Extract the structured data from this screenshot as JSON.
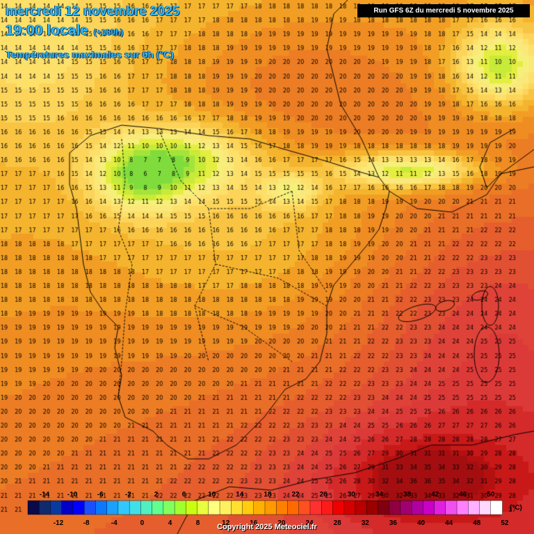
{
  "header": {
    "date_label": "mercredi 12 novembre 2025",
    "time_label": "19:00 locale",
    "lead_label": "(+180h)",
    "product_label": "Températures maximales sur 6h (°C)",
    "run_label": "Run GFS 6Z du mercredi 5 novembre 2025"
  },
  "legend": {
    "unit": "(°C)",
    "top_ticks": [
      "-14",
      "-10",
      "-6",
      "-2",
      "2",
      "6",
      "10",
      "14",
      "18",
      "22",
      "26",
      "30",
      "34",
      "38",
      "42",
      "46",
      "50"
    ],
    "bottom_ticks": [
      "-12",
      "-8",
      "-4",
      "0",
      "4",
      "8",
      "12",
      "16",
      "20",
      "24",
      "28",
      "32",
      "36",
      "40",
      "44",
      "48",
      "52"
    ],
    "colors": [
      "#0a0a4a",
      "#102a6e",
      "#0a3aa0",
      "#0000c8",
      "#0000ff",
      "#1a50ff",
      "#0a78ff",
      "#1aa0ff",
      "#30c8ff",
      "#40e0e8",
      "#50f0c0",
      "#60ff90",
      "#80ff60",
      "#a0ff30",
      "#c8ff10",
      "#e8ff40",
      "#ffff80",
      "#fff060",
      "#ffe030",
      "#ffcc10",
      "#ffb000",
      "#ff9a00",
      "#ff8000",
      "#ff6a00",
      "#ff5020",
      "#ff3030",
      "#ff1a1a",
      "#f00000",
      "#d40000",
      "#b80000",
      "#9a0000",
      "#800010",
      "#900040",
      "#a00070",
      "#b000a0",
      "#c800c8",
      "#e020e0",
      "#f050f0",
      "#ff80ff",
      "#ffb0ff",
      "#ffd8ff",
      "#ffffff"
    ]
  },
  "map": {
    "field_name": "Températures maximales sur 6h",
    "temperature_colors": {
      "8": "#7fdc3c",
      "9": "#a4e43a",
      "10": "#c8ea38",
      "11": "#e4ee40",
      "12": "#f6f07a",
      "13": "#fbe87a",
      "14": "#fde06a",
      "15": "#fcd45a",
      "16": "#f8c442",
      "17": "#f5b42e",
      "18": "#f29e24",
      "19": "#ef8c22",
      "20": "#ec7d24",
      "21": "#e96e28",
      "22": "#e65e2e",
      "23": "#e25034",
      "24": "#df4238",
      "25": "#dc3a38",
      "26": "#d42a2a",
      "28": "#c81818",
      "30": "#b41010",
      "31": "#a40e10"
    },
    "label_color": "#000000",
    "coastline_color": "#000000"
  },
  "copyright": "Copyright 2025 Meteociel.fr"
}
